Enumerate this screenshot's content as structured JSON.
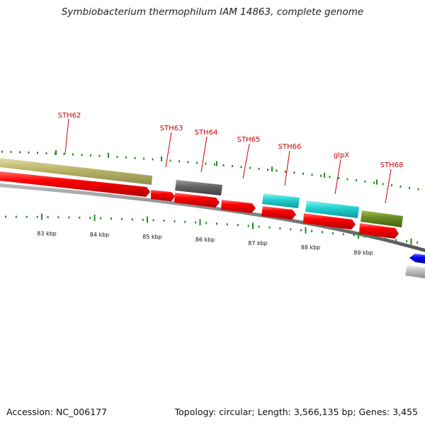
{
  "title": "Symbiobacterium thermophilum IAM 14863, complete genome",
  "footer": {
    "accession": "Accession: NC_006177",
    "summary": "Topology: circular; Length: 3,566,135 bp; Genes: 3,455"
  },
  "colors": {
    "label": "#cc0000",
    "tick": "#228b22",
    "backbone": "#777777",
    "cds": "#ff0000",
    "khaki": "#bdb76b",
    "gray": "#666666",
    "cyan": "#22d3d3",
    "olive": "#6b8e23",
    "blue": "#0000ee",
    "silver": "#c0c0c0"
  },
  "scale_labels": [
    "83 kbp",
    "84 kbp",
    "85 kbp",
    "86 kbp",
    "87 kbp",
    "88 kbp",
    "89 kbp"
  ],
  "gene_labels": [
    "STH62",
    "STH63",
    "STH64",
    "STH65",
    "STH66",
    "glpX",
    "STH68"
  ],
  "features": [
    {
      "name": "STH62 outer",
      "color": "khaki"
    },
    {
      "name": "STH62 cds",
      "color": "cds"
    },
    {
      "name": "STH63 cds",
      "color": "cds"
    },
    {
      "name": "STH64 outer",
      "color": "gray"
    },
    {
      "name": "STH64 cds",
      "color": "cds"
    },
    {
      "name": "STH65 cds",
      "color": "cds"
    },
    {
      "name": "STH66 outer",
      "color": "cyan"
    },
    {
      "name": "STH66 cds",
      "color": "cds"
    },
    {
      "name": "glpX outer",
      "color": "cyan"
    },
    {
      "name": "glpX cds",
      "color": "cds"
    },
    {
      "name": "STH68 outer",
      "color": "olive"
    },
    {
      "name": "STH68 cds",
      "color": "cds"
    },
    {
      "name": "next cds",
      "color": "blue"
    },
    {
      "name": "next outer",
      "color": "silver"
    }
  ]
}
